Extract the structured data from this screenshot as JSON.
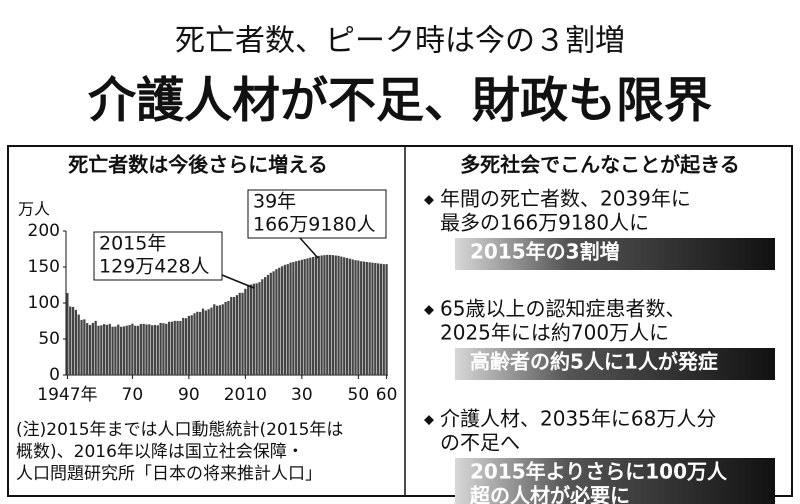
{
  "header": {
    "subtitle": "死亡者数、ピーク時は今の３割増",
    "title": "介護人材が不足、財政も限界"
  },
  "chart_data": {
    "type": "bar",
    "title": "死亡者数は今後さらに増える",
    "ylabel": "万人",
    "color": "#444444",
    "x": [
      1947,
      1948,
      1949,
      1950,
      1951,
      1952,
      1953,
      1954,
      1955,
      1956,
      1957,
      1958,
      1959,
      1960,
      1961,
      1962,
      1963,
      1964,
      1965,
      1966,
      1967,
      1968,
      1969,
      1970,
      1971,
      1972,
      1973,
      1974,
      1975,
      1976,
      1977,
      1978,
      1979,
      1980,
      1981,
      1982,
      1983,
      1984,
      1985,
      1986,
      1987,
      1988,
      1989,
      1990,
      1991,
      1992,
      1993,
      1994,
      1995,
      1996,
      1997,
      1998,
      1999,
      2000,
      2001,
      2002,
      2003,
      2004,
      2005,
      2006,
      2007,
      2008,
      2009,
      2010,
      2011,
      2012,
      2013,
      2014,
      2015,
      2016,
      2017,
      2018,
      2019,
      2020,
      2021,
      2022,
      2023,
      2024,
      2025,
      2026,
      2027,
      2028,
      2029,
      2030,
      2031,
      2032,
      2033,
      2034,
      2035,
      2036,
      2037,
      2038,
      2039,
      2040,
      2041,
      2042,
      2043,
      2044,
      2045,
      2046,
      2047,
      2048,
      2049,
      2050,
      2051,
      2052,
      2053,
      2054,
      2055,
      2056,
      2057,
      2058,
      2059,
      2060
    ],
    "values": [
      113.8,
      95.1,
      94.5,
      90.5,
      83.9,
      76.5,
      77.3,
      72.1,
      69.4,
      72.4,
      75.2,
      68.4,
      69.0,
      70.7,
      69.6,
      71.0,
      67.1,
      67.3,
      70.0,
      67.0,
      67.5,
      68.6,
      69.4,
      71.3,
      68.5,
      68.3,
      70.9,
      71.0,
      70.2,
      70.4,
      69.0,
      69.6,
      69.0,
      72.3,
      72.0,
      71.2,
      74.0,
      74.0,
      75.2,
      75.1,
      75.1,
      79.3,
      78.9,
      82.0,
      83.0,
      85.7,
      87.9,
      87.6,
      92.2,
      89.6,
      91.3,
      93.6,
      98.2,
      96.2,
      97.0,
      98.2,
      101.5,
      102.9,
      108.4,
      108.4,
      110.9,
      114.2,
      114.2,
      119.7,
      125.3,
      125.6,
      126.8,
      127.3,
      129.0428,
      133,
      136,
      139,
      142,
      144,
      147,
      149,
      151,
      153,
      154,
      156,
      157,
      158,
      159,
      160,
      161,
      162,
      163,
      164,
      165,
      165.5,
      166,
      166.5,
      166.918,
      166.8,
      166.5,
      166,
      165.5,
      164.5,
      163.5,
      162.5,
      161.5,
      160.5,
      159.5,
      159,
      158,
      157.5,
      157,
      156.5,
      156,
      155.5,
      155,
      154.5,
      154,
      154
    ],
    "xlim": [
      1947,
      2060
    ],
    "xticks": [
      {
        "value": 1947,
        "label": "1947年"
      },
      {
        "value": 1970,
        "label": "70"
      },
      {
        "value": 1990,
        "label": "90"
      },
      2010,
      {
        "value": 2030,
        "label": "30"
      },
      {
        "value": 2050,
        "label": "50"
      },
      {
        "value": 2060,
        "label": "60"
      }
    ],
    "ylim": [
      0,
      200
    ],
    "yticks": [
      0,
      50,
      100,
      150,
      200
    ],
    "annotations": [
      [
        "2015年",
        "129万428人"
      ],
      [
        "39年",
        "166万9180人"
      ]
    ],
    "note": [
      "(注)2015年までは人口動態統計(2015年は",
      "概数)、2016年以降は国立社会保障・",
      "人口問題研究所「日本の将来推計人口」"
    ]
  },
  "panel": {
    "title": "多死社会でこんなことが起きる",
    "items": [
      {
        "text": [
          "年間の死亡者数、2039年に",
          "最多の166万9180人に"
        ],
        "highlight": [
          "2015年の3割増"
        ]
      },
      {
        "text": [
          "65歳以上の認知症患者数、",
          "2025年には約700万人に"
        ],
        "highlight": [
          "高齢者の約5人に1人が発症"
        ]
      },
      {
        "text": [
          "介護人材、2035年に68万人分",
          "の不足へ"
        ],
        "highlight": [
          "2015年よりさらに100万人",
          "超の人材が必要に"
        ]
      }
    ]
  }
}
